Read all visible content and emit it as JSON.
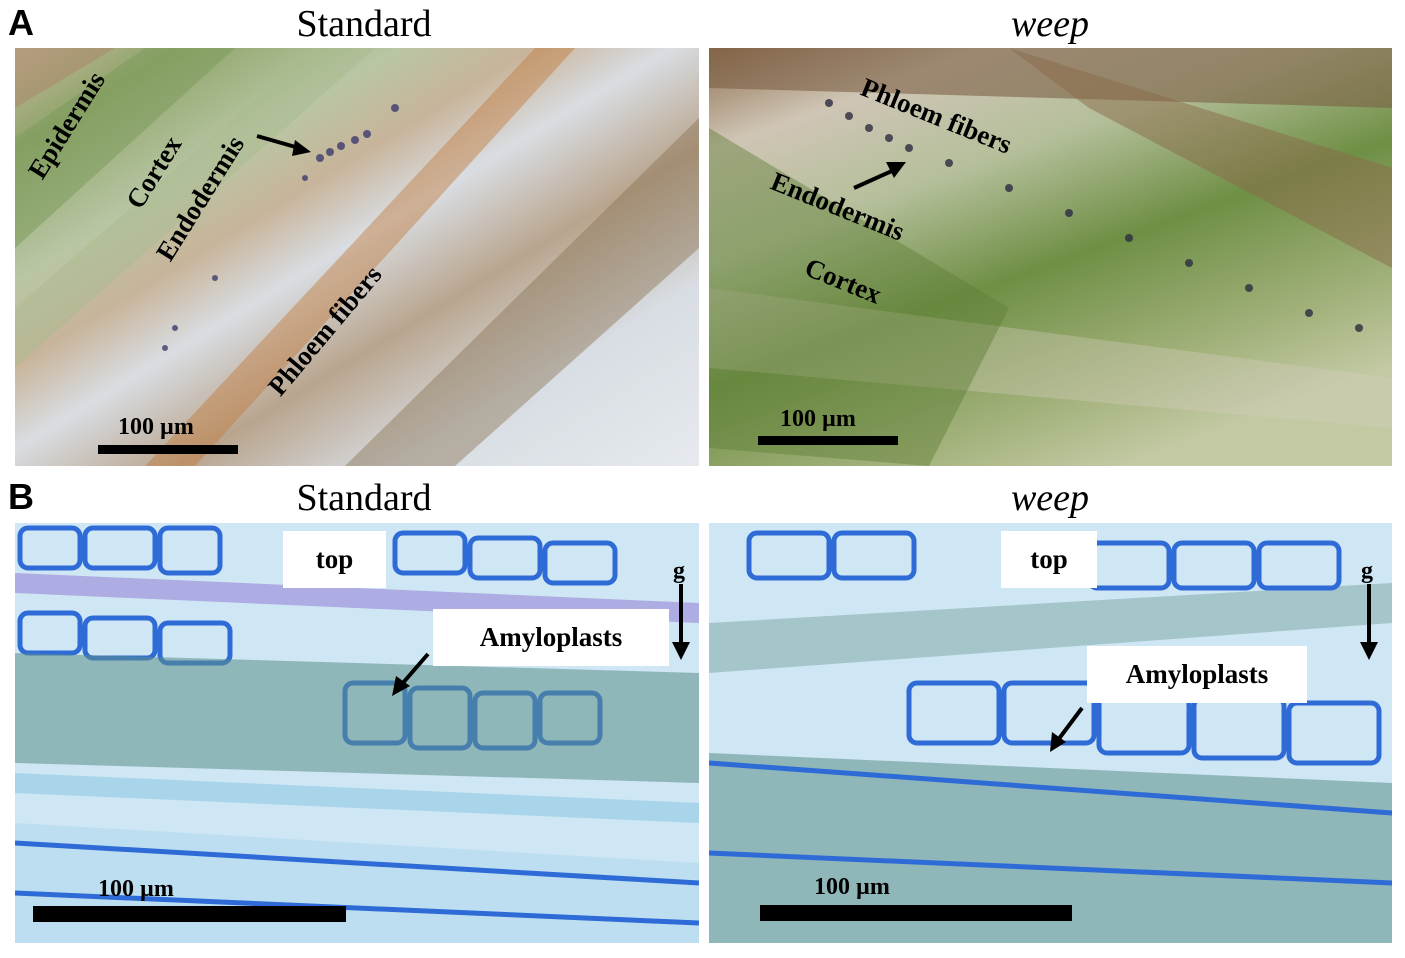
{
  "panels": {
    "a": {
      "letter": "A",
      "left_title": "Standard",
      "right_title": "weep",
      "left_labels": {
        "epidermis": "Epidermis",
        "cortex": "Cortex",
        "endodermis": "Endodermis",
        "phloem": "Phloem fibers",
        "scale": "100 µm"
      },
      "right_labels": {
        "phloem": "Phloem fibers",
        "endodermis": "Endodermis",
        "cortex": "Cortex",
        "scale": "100 µm"
      }
    },
    "b": {
      "letter": "B",
      "left_title": "Standard",
      "right_title": "weep",
      "left_labels": {
        "top": "top",
        "amyloplasts": "Amyloplasts",
        "g": "g",
        "scale": "100 µm"
      },
      "right_labels": {
        "top": "top",
        "amyloplasts": "Amyloplasts",
        "g": "g",
        "scale": "100 µm"
      }
    }
  }
}
